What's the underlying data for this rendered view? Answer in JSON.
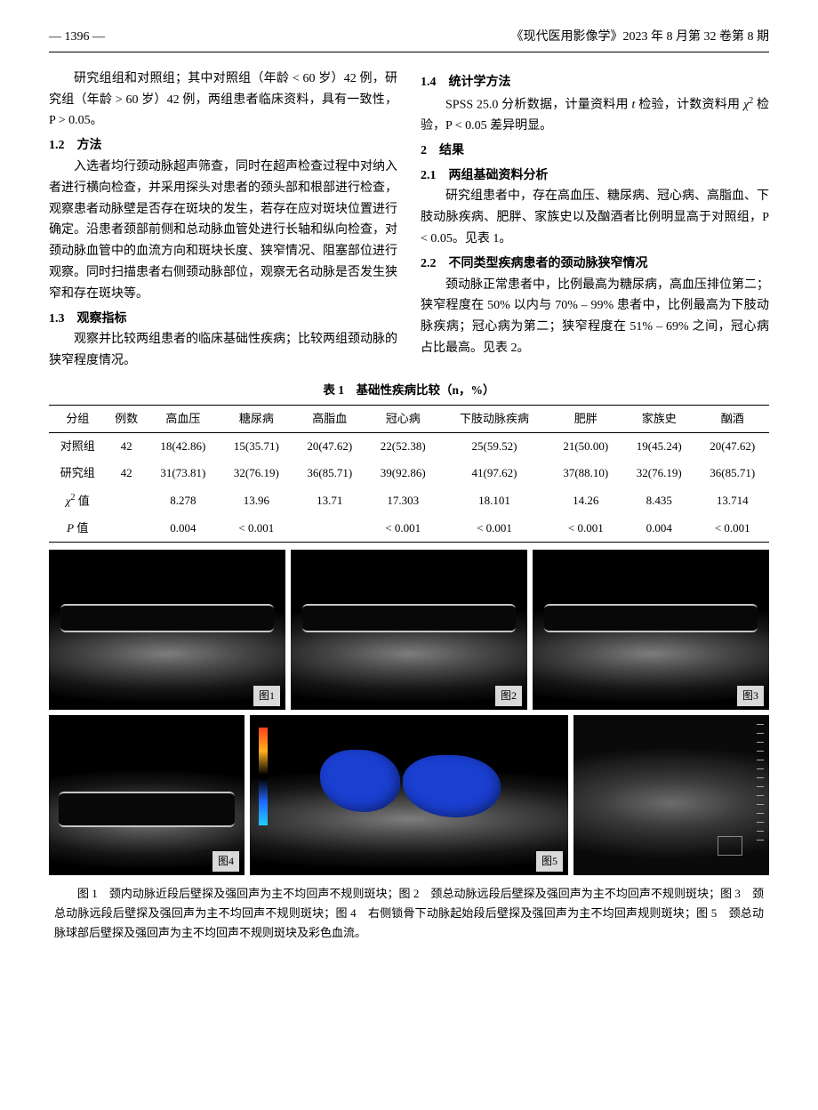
{
  "header": {
    "page_label": "— 1396 —",
    "journal": "《现代医用影像学》2023 年 8 月第 32 卷第 8 期"
  },
  "left_col": {
    "p1": "研究组组和对照组；其中对照组（年龄 < 60 岁）42 例，研究组（年龄 > 60 岁）42 例，两组患者临床资料，具有一致性，P > 0.05。",
    "h12": "1.2　方法",
    "p2": "入选者均行颈动脉超声筛查，同时在超声检查过程中对纳入者进行横向检查，并采用探头对患者的颈头部和根部进行检查，观察患者动脉壁是否存在斑块的发生，若存在应对斑块位置进行确定。沿患者颈部前侧和总动脉血管处进行长轴和纵向检查，对颈动脉血管中的血流方向和斑块长度、狭窄情况、阻塞部位进行观察。同时扫描患者右侧颈动脉部位，观察无名动脉是否发生狭窄和存在斑块等。",
    "h13": "1.3　观察指标",
    "p3": "观察并比较两组患者的临床基础性疾病；比较两组颈动脉的狭窄程度情况。"
  },
  "right_col": {
    "h14": "1.4　统计学方法",
    "p4a": "SPSS 25.0 分析数据，计量资料用 ",
    "p4b": " 检验，计数资料用 ",
    "p4c": " 检验，P < 0.05 差异明显。",
    "h2": "2　结果",
    "h21": "2.1　两组基础资料分析",
    "p5": "研究组患者中，存在高血压、糖尿病、冠心病、高脂血、下肢动脉疾病、肥胖、家族史以及酗酒者比例明显高于对照组，P < 0.05。见表 1。",
    "h22": "2.2　不同类型疾病患者的颈动脉狭窄情况",
    "p6": "颈动脉正常患者中，比例最高为糖尿病，高血压排位第二；狭窄程度在 50% 以内与 70% – 99% 患者中，比例最高为下肢动脉疾病；冠心病为第二；狭窄程度在 51% – 69% 之间，冠心病占比最高。见表 2。"
  },
  "table1": {
    "title": "表 1　基础性疾病比较（n，%）",
    "headers": [
      "分组",
      "例数",
      "高血压",
      "糖尿病",
      "高脂血",
      "冠心病",
      "下肢动脉疾病",
      "肥胖",
      "家族史",
      "酗酒"
    ],
    "rows": [
      [
        "对照组",
        "42",
        "18(42.86)",
        "15(35.71)",
        "20(47.62)",
        "22(52.38)",
        "25(59.52)",
        "21(50.00)",
        "19(45.24)",
        "20(47.62)"
      ],
      [
        "研究组",
        "42",
        "31(73.81)",
        "32(76.19)",
        "36(85.71)",
        "39(92.86)",
        "41(97.62)",
        "37(88.10)",
        "32(76.19)",
        "36(85.71)"
      ]
    ],
    "chi_label": "χ² 值",
    "chi_row": [
      "",
      "",
      "8.278",
      "13.96",
      "13.71",
      "17.303",
      "18.101",
      "14.26",
      "8.435",
      "13.714"
    ],
    "p_label": "P 值",
    "p_row": [
      "",
      "",
      "0.004",
      "< 0.001",
      "",
      "< 0.001",
      "< 0.001",
      "< 0.001",
      "0.004",
      "< 0.001"
    ]
  },
  "figures": {
    "labels": [
      "图1",
      "图2",
      "图3",
      "图4",
      "图5"
    ],
    "caption": "图 1　颈内动脉近段后壁探及强回声为主不均回声不规则斑块；图 2　颈总动脉远段后壁探及强回声为主不均回声不规则斑块；图 3　颈总动脉远段后壁探及强回声为主不均回声不规则斑块；图 4　右侧锁骨下动脉起始段后壁探及强回声为主不均回声规则斑块；图 5　颈总动脉球部后壁探及强回声为主不均回声不规则斑块及彩色血流。"
  }
}
